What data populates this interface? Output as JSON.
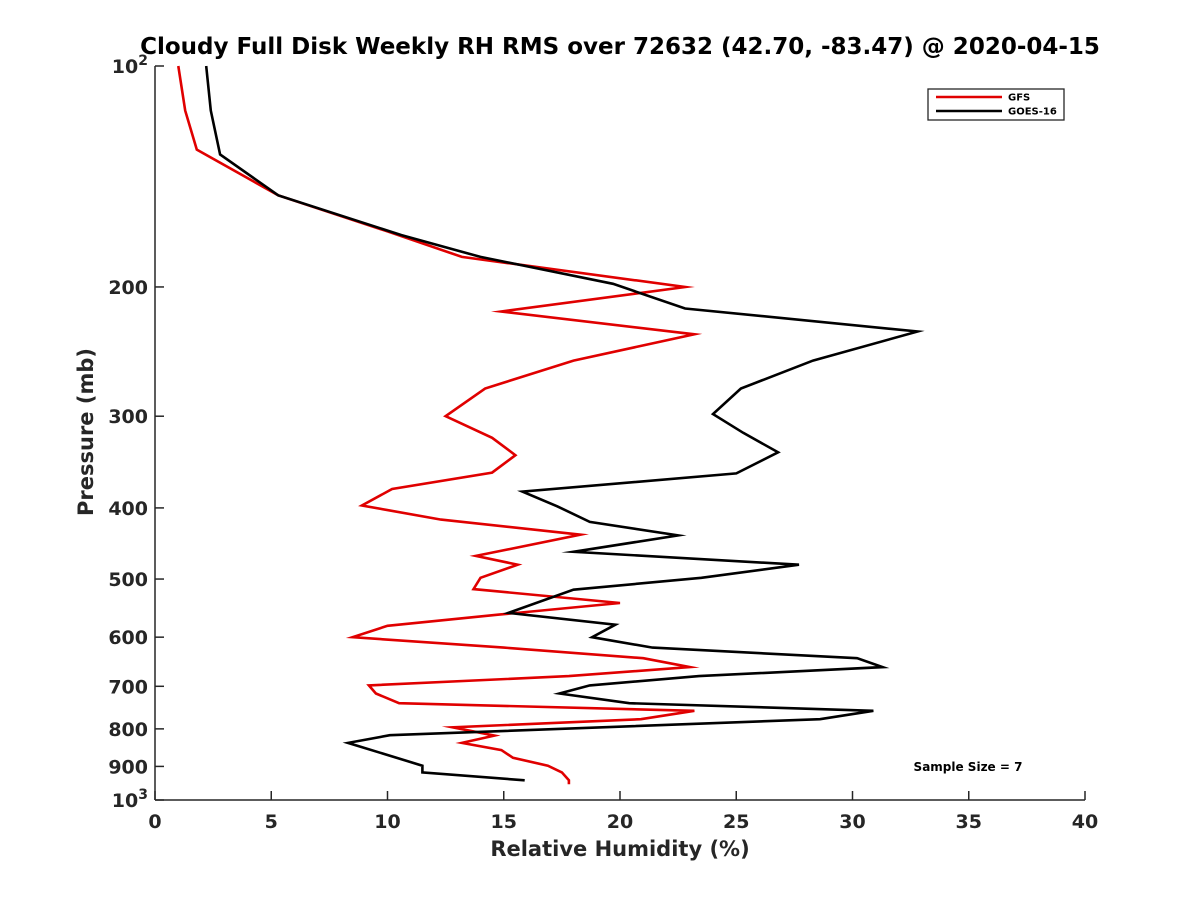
{
  "chart_data": {
    "type": "line",
    "title": "Cloudy Full Disk Weekly RH RMS over 72632 (42.70, -83.47) @ 2020-04-15",
    "xlabel": "Relative Humidity (%)",
    "ylabel": "Pressure (mb)",
    "xlim": [
      0,
      40
    ],
    "ylim": [
      100,
      1000
    ],
    "y_scale": "log",
    "y_reversed": true,
    "x_ticks": [
      0,
      5,
      10,
      15,
      20,
      25,
      30,
      35,
      40
    ],
    "x_tick_labels": [
      "0",
      "5",
      "10",
      "15",
      "20",
      "25",
      "30",
      "35",
      "40"
    ],
    "y_ticks": [
      100,
      200,
      300,
      400,
      500,
      600,
      700,
      800,
      900,
      1000
    ],
    "y_tick_labels": [
      {
        "base": "10",
        "exp": "2"
      },
      {
        "base": "200",
        "exp": ""
      },
      {
        "base": "300",
        "exp": ""
      },
      {
        "base": "400",
        "exp": ""
      },
      {
        "base": "500",
        "exp": ""
      },
      {
        "base": "600",
        "exp": ""
      },
      {
        "base": "700",
        "exp": ""
      },
      {
        "base": "800",
        "exp": ""
      },
      {
        "base": "900",
        "exp": ""
      },
      {
        "base": "10",
        "exp": "3"
      }
    ],
    "grid": false,
    "legend_position": "top-right",
    "annotation": "Sample Size = 7",
    "series": [
      {
        "name": "GFS",
        "color": "#e00000",
        "points": [
          [
            1.0,
            100
          ],
          [
            1.3,
            115
          ],
          [
            1.8,
            130
          ],
          [
            5.3,
            150
          ],
          [
            10.0,
            168
          ],
          [
            13.2,
            182
          ],
          [
            22.8,
            200
          ],
          [
            14.9,
            216
          ],
          [
            23.2,
            232
          ],
          [
            18.0,
            252
          ],
          [
            14.2,
            275
          ],
          [
            12.5,
            300
          ],
          [
            14.5,
            321
          ],
          [
            15.5,
            339
          ],
          [
            14.5,
            358
          ],
          [
            10.2,
            377
          ],
          [
            8.9,
            397
          ],
          [
            12.3,
            415
          ],
          [
            18.3,
            435
          ],
          [
            13.8,
            465
          ],
          [
            15.6,
            478
          ],
          [
            14.0,
            498
          ],
          [
            13.7,
            516
          ],
          [
            20.0,
            539
          ],
          [
            14.8,
            559
          ],
          [
            10.0,
            579
          ],
          [
            8.5,
            600
          ],
          [
            15.0,
            620
          ],
          [
            21.0,
            641
          ],
          [
            23.0,
            659
          ],
          [
            17.8,
            678
          ],
          [
            9.2,
            698
          ],
          [
            9.5,
            716
          ],
          [
            10.5,
            738
          ],
          [
            23.2,
            756
          ],
          [
            20.9,
            776
          ],
          [
            12.8,
            796
          ],
          [
            14.6,
            817
          ],
          [
            13.2,
            836
          ],
          [
            14.9,
            855
          ],
          [
            15.4,
            876
          ],
          [
            16.9,
            898
          ],
          [
            17.5,
            917
          ],
          [
            17.8,
            940
          ],
          [
            17.8,
            952
          ]
        ]
      },
      {
        "name": "GOES-16",
        "color": "#000000",
        "points": [
          [
            2.2,
            100
          ],
          [
            2.4,
            115
          ],
          [
            2.8,
            132
          ],
          [
            5.3,
            150
          ],
          [
            10.6,
            170
          ],
          [
            14.0,
            182
          ],
          [
            19.7,
            198
          ],
          [
            22.8,
            214
          ],
          [
            32.8,
            230
          ],
          [
            28.3,
            252
          ],
          [
            25.2,
            275
          ],
          [
            24.0,
            298
          ],
          [
            25.3,
            316
          ],
          [
            26.8,
            336
          ],
          [
            25.0,
            359
          ],
          [
            15.8,
            380
          ],
          [
            17.3,
            398
          ],
          [
            18.7,
            418
          ],
          [
            22.5,
            436
          ],
          [
            18.0,
            459
          ],
          [
            27.7,
            478
          ],
          [
            23.5,
            498
          ],
          [
            18.0,
            517
          ],
          [
            15.2,
            556
          ],
          [
            19.8,
            577
          ],
          [
            18.8,
            600
          ],
          [
            21.4,
            620
          ],
          [
            30.2,
            641
          ],
          [
            31.3,
            659
          ],
          [
            23.4,
            678
          ],
          [
            18.7,
            698
          ],
          [
            17.4,
            716
          ],
          [
            20.4,
            738
          ],
          [
            30.9,
            756
          ],
          [
            28.6,
            776
          ],
          [
            10.1,
            816
          ],
          [
            8.3,
            836
          ],
          [
            11.5,
            898
          ],
          [
            11.5,
            917
          ],
          [
            15.9,
            940
          ]
        ]
      }
    ]
  }
}
